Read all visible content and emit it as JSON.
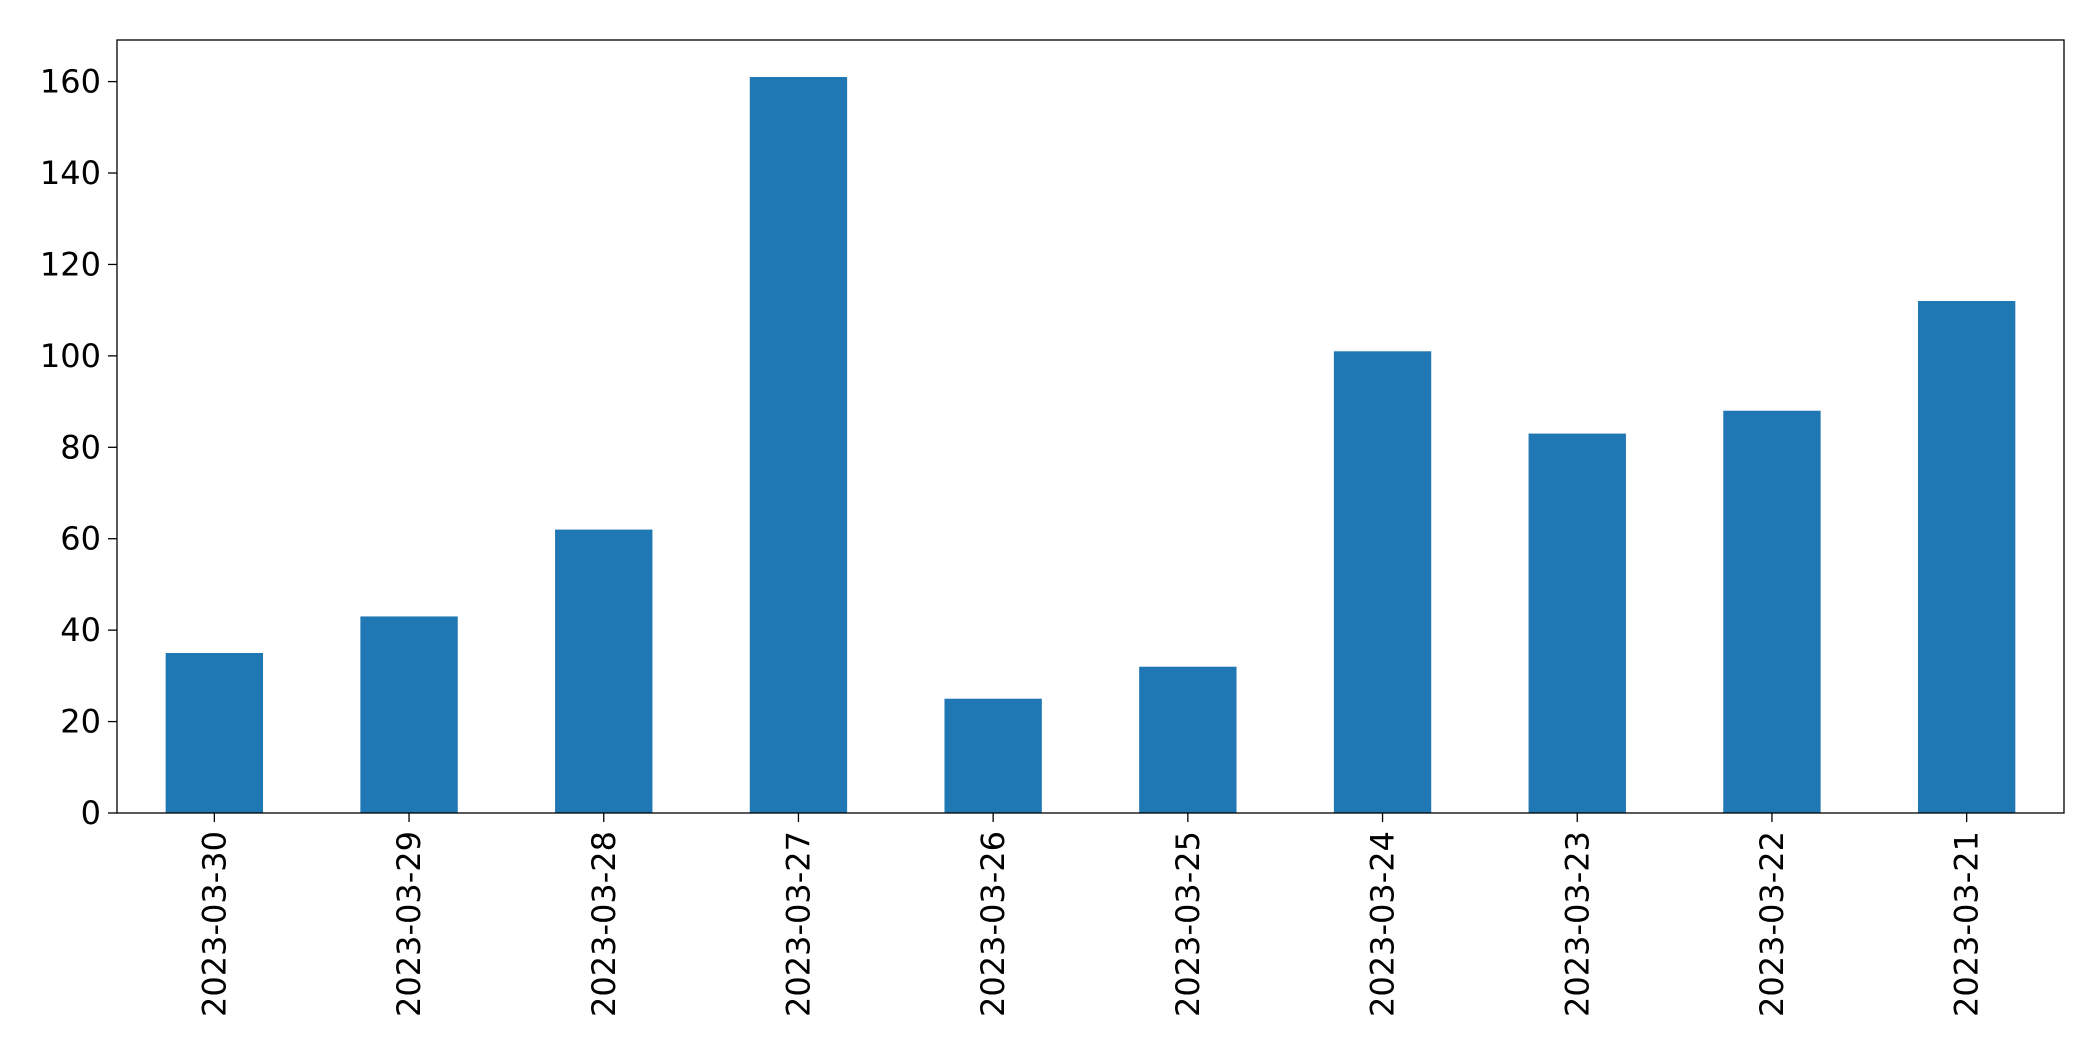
{
  "chart_data": {
    "type": "bar",
    "categories": [
      "2023-03-30",
      "2023-03-29",
      "2023-03-28",
      "2023-03-27",
      "2023-03-26",
      "2023-03-25",
      "2023-03-24",
      "2023-03-23",
      "2023-03-22",
      "2023-03-21"
    ],
    "values": [
      35,
      43,
      62,
      161,
      25,
      32,
      101,
      83,
      88,
      112
    ],
    "color": "#1f77b4",
    "ylim": [
      0,
      169.1
    ],
    "yticks": [
      0,
      20,
      40,
      60,
      80,
      100,
      120,
      140,
      160
    ],
    "grid": false
  }
}
